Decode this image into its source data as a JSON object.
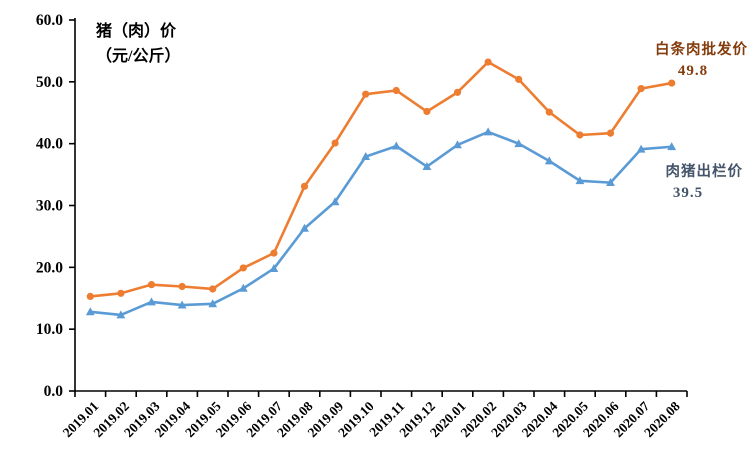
{
  "chart_data": {
    "type": "line",
    "title_line1": "猪（肉）价",
    "title_line2": "（元/公斤）",
    "unit": "元/公斤",
    "categories": [
      "2019.01",
      "2019.02",
      "2019.03",
      "2019.04",
      "2019.05",
      "2019.06",
      "2019.07",
      "2019.08",
      "2019.09",
      "2019.10",
      "2019.11",
      "2019.12",
      "2020.01",
      "2020.02",
      "2020.03",
      "2020.04",
      "2020.05",
      "2020.06",
      "2020.07",
      "2020.08"
    ],
    "series": [
      {
        "name": "白条肉批发价",
        "end_label": "49.8",
        "color": "#ED7D31",
        "label_color": "#843C0C",
        "marker": "circle",
        "values": [
          15.3,
          15.8,
          17.2,
          16.9,
          16.5,
          19.9,
          22.3,
          33.1,
          40.1,
          48.0,
          48.6,
          45.2,
          48.3,
          53.2,
          50.4,
          45.1,
          41.4,
          41.7,
          48.9,
          49.8
        ]
      },
      {
        "name": "肉猪出栏价",
        "end_label": "39.5",
        "color": "#5B9BD5",
        "label_color": "#44546A",
        "marker": "triangle",
        "values": [
          12.8,
          12.3,
          14.4,
          13.9,
          14.1,
          16.6,
          19.8,
          26.3,
          30.6,
          37.9,
          39.6,
          36.3,
          39.8,
          41.9,
          40.0,
          37.2,
          34.0,
          33.7,
          39.1,
          39.5
        ]
      }
    ],
    "y_axis": {
      "min": 0,
      "max": 60,
      "step": 10,
      "tick_labels": [
        "0.0",
        "10.0",
        "20.0",
        "30.0",
        "40.0",
        "50.0",
        "60.0"
      ]
    },
    "x_axis_label_rotation_deg": -45,
    "grid": false,
    "axis_color": "#000000",
    "background_color": "#FFFFFF"
  }
}
